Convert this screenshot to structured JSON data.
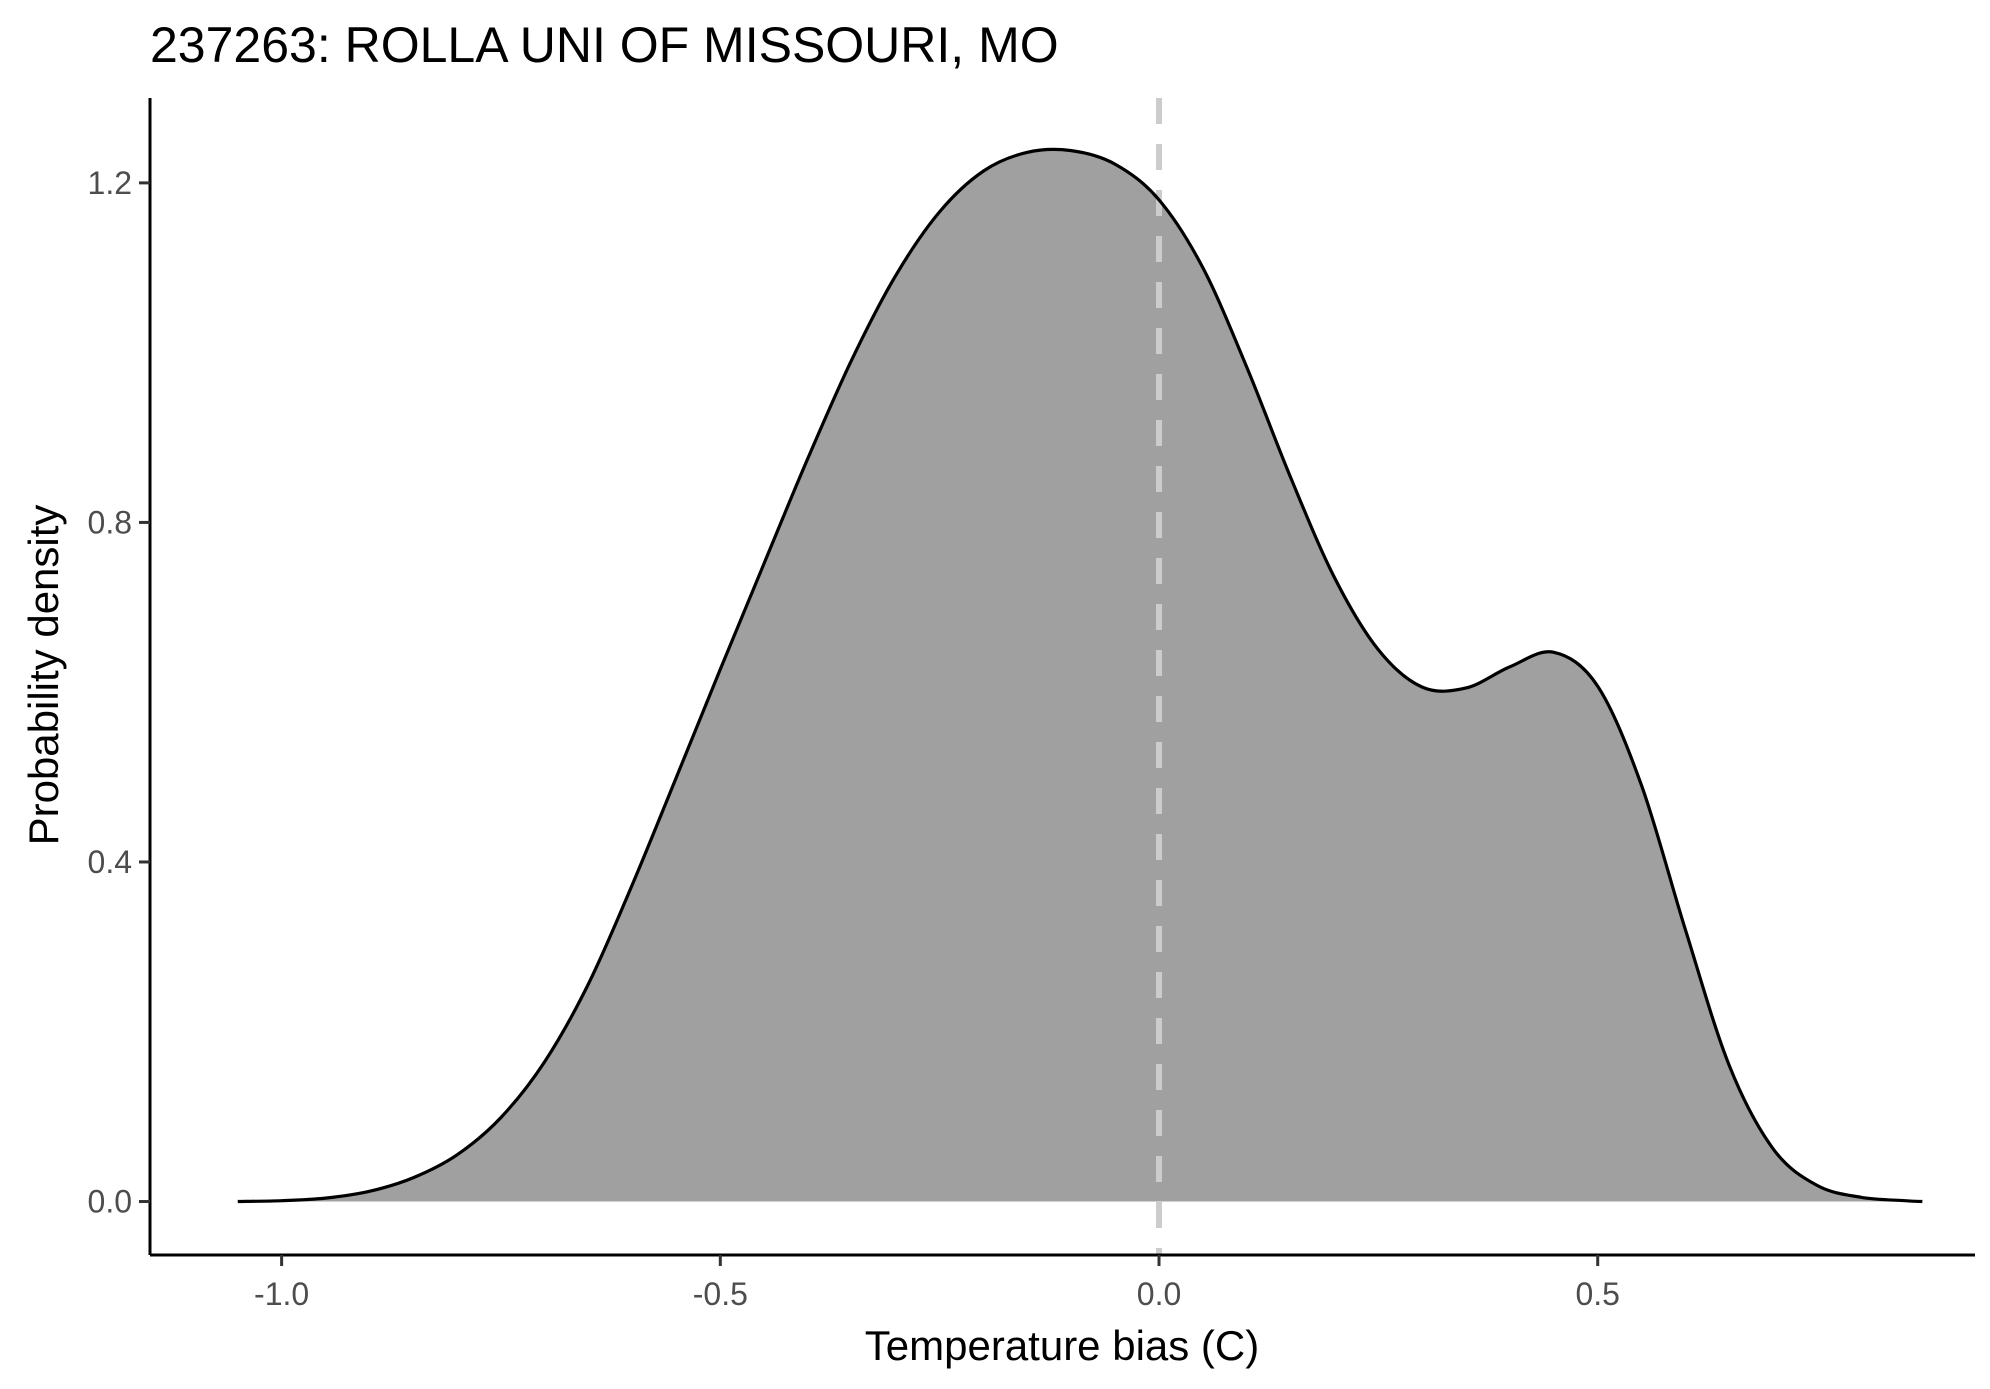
{
  "chart_data": {
    "type": "area",
    "title": "237263: ROLLA UNI OF MISSOURI, MO",
    "xlabel": "Temperature bias (C)",
    "ylabel": "Probability density",
    "xlim": [
      -1.15,
      0.93
    ],
    "ylim": [
      -0.063,
      1.3
    ],
    "x_ticks": [
      -1.0,
      -0.5,
      0.0,
      0.5
    ],
    "x_tick_labels": [
      "-1.0",
      "-0.5",
      "0.0",
      "0.5"
    ],
    "y_ticks": [
      0.0,
      0.4,
      0.8,
      1.2
    ],
    "y_tick_labels": [
      "0.0",
      "0.4",
      "0.8",
      "1.2"
    ],
    "reference_line": {
      "x": 0.0,
      "style": "dashed",
      "color": "#cccccc"
    },
    "fill_color": "#a0a0a0",
    "line_color": "#000000",
    "grid": false,
    "legend": "none",
    "series": [
      {
        "x": [
          -1.05,
          -1.0,
          -0.95,
          -0.9,
          -0.85,
          -0.8,
          -0.75,
          -0.7,
          -0.65,
          -0.6,
          -0.55,
          -0.5,
          -0.45,
          -0.4,
          -0.35,
          -0.3,
          -0.25,
          -0.2,
          -0.15,
          -0.1,
          -0.05,
          0.0,
          0.05,
          0.1,
          0.15,
          0.2,
          0.25,
          0.3,
          0.35,
          0.4,
          0.45,
          0.5,
          0.55,
          0.6,
          0.65,
          0.7,
          0.75,
          0.8,
          0.85,
          0.87
        ],
        "y": [
          0.0,
          0.001,
          0.004,
          0.012,
          0.028,
          0.055,
          0.099,
          0.165,
          0.257,
          0.374,
          0.5,
          0.627,
          0.752,
          0.876,
          0.992,
          1.091,
          1.166,
          1.214,
          1.236,
          1.238,
          1.222,
          1.18,
          1.1,
          0.983,
          0.853,
          0.735,
          0.65,
          0.606,
          0.605,
          0.63,
          0.647,
          0.607,
          0.49,
          0.32,
          0.16,
          0.062,
          0.019,
          0.005,
          0.001,
          0.0
        ]
      }
    ]
  }
}
